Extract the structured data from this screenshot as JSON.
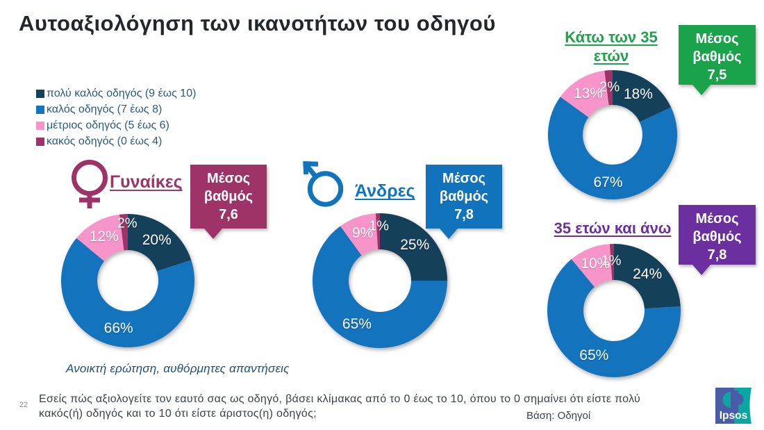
{
  "page": {
    "number": "22"
  },
  "title": "Αυτοαξιολόγηση των ικανοτήτων του οδηγού",
  "note_italic": "Ανοικτή ερώτηση, αυθόρμητες απαντήσεις",
  "footnote_lines": [
    "Εσείς πώς αξιολογείτε τον εαυτό σας ως οδηγό, βάσει κλίμακας από το 0 έως το 10, όπου το 0 σημαίνει ότι είστε πολύ",
    "κακός(ή) οδηγός και το 10 ότι είστε άριστος(η) οδηγός;"
  ],
  "base_label": "Βάση: Οδηγοί",
  "logo_text": "Ipsos",
  "colors": {
    "very_good": "#15405a",
    "good": "#1373bd",
    "average": "#f794ca",
    "bad": "#9c3467",
    "women_accent": "#9e3368",
    "men_accent": "#1074be",
    "under35_accent": "#1fa24a",
    "over35_accent": "#6b2f9f"
  },
  "chart_data": {
    "type": "donut",
    "title": "Αυτοαξιολόγηση των ικανοτήτων του οδηγού",
    "legend": [
      {
        "label": "πολύ καλός οδηγός (9 έως 10)",
        "color": "#15405a"
      },
      {
        "label": "καλός οδηγός (7 έως 8)",
        "color": "#1373bd"
      },
      {
        "label": "μέτριος οδηγός (5 έως 6)",
        "color": "#f794ca"
      },
      {
        "label": "κακός οδηγός (0 έως 4)",
        "color": "#9c3467"
      }
    ],
    "charts": [
      {
        "id": "women",
        "title": "Γυναίκες",
        "average_label": "Μέσος βαθμός",
        "average": "7,6",
        "values": [
          20,
          66,
          12,
          2
        ]
      },
      {
        "id": "men",
        "title": "Άνδρες",
        "average_label": "Μέσος βαθμός",
        "average": "7,8",
        "values": [
          25,
          65,
          9,
          1
        ]
      },
      {
        "id": "under35",
        "title": "Κάτω των 35 ετών",
        "average_label": "Μέσος βαθμός",
        "average": "7,5",
        "values": [
          18,
          67,
          13,
          2
        ]
      },
      {
        "id": "over35",
        "title": "35 ετών και άνω",
        "average_label": "Μέσος βαθμός",
        "average": "7,8",
        "values": [
          24,
          65,
          10,
          1
        ]
      }
    ]
  }
}
